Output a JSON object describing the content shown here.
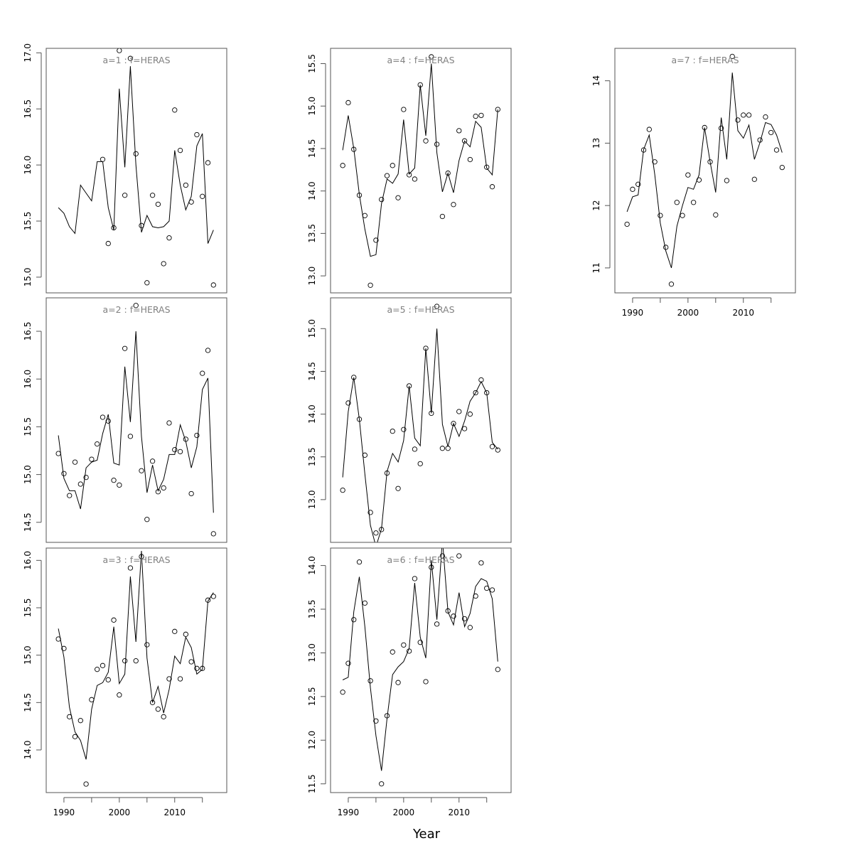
{
  "chart_data": {
    "type": "line",
    "xlabel": "Year",
    "xlim": [
      1986.8,
      2019.4
    ],
    "x_ticks": [
      "1990",
      "2000",
      "2010"
    ],
    "x": [
      1989,
      1990,
      1991,
      1992,
      1993,
      1994,
      1995,
      1996,
      1997,
      1998,
      1999,
      2000,
      2001,
      2002,
      2003,
      2004,
      2005,
      2006,
      2007,
      2008,
      2009,
      2010,
      2011,
      2012,
      2013,
      2014,
      2015,
      2016,
      2017
    ],
    "legend": "none",
    "grid": false,
    "panels": [
      {
        "title": "a=1  :  f=HERAS",
        "ylim": [
          14.86,
          17.04
        ],
        "y_ticks": [
          "15.0",
          "15.5",
          "16.0",
          "16.5",
          "17.0"
        ],
        "show_x_axis": false,
        "observed": [
          null,
          null,
          null,
          null,
          null,
          null,
          null,
          null,
          16.05,
          15.3,
          15.44,
          17.02,
          15.73,
          16.95,
          16.1,
          15.46,
          14.95,
          15.73,
          15.65,
          15.12,
          15.35,
          16.49,
          16.13,
          15.82,
          15.67,
          16.27,
          15.72,
          16.02,
          14.93
        ],
        "fitted": [
          15.62,
          15.57,
          15.45,
          15.39,
          15.82,
          15.75,
          15.68,
          16.03,
          16.03,
          15.62,
          15.42,
          16.68,
          15.98,
          16.88,
          16.0,
          15.4,
          15.55,
          15.45,
          15.44,
          15.45,
          15.5,
          16.13,
          15.82,
          15.6,
          15.72,
          16.17,
          16.28,
          15.3,
          15.42
        ]
      },
      {
        "title": "a=2  :  f=HERAS",
        "ylim": [
          14.29,
          16.85
        ],
        "y_ticks": [
          "14.5",
          "15.0",
          "15.5",
          "16.0",
          "16.5"
        ],
        "show_x_axis": false,
        "observed": [
          15.22,
          15.01,
          14.78,
          15.13,
          14.9,
          14.97,
          15.16,
          15.32,
          15.6,
          15.56,
          14.94,
          14.89,
          16.32,
          15.4,
          16.77,
          15.04,
          14.53,
          15.14,
          14.82,
          14.86,
          15.54,
          15.26,
          15.24,
          15.37,
          14.8,
          15.41,
          16.06,
          16.3,
          14.38
        ],
        "fitted": [
          15.41,
          14.96,
          14.83,
          14.83,
          14.64,
          15.07,
          15.13,
          15.15,
          15.43,
          15.63,
          15.12,
          15.1,
          16.13,
          15.55,
          16.5,
          15.4,
          14.81,
          15.1,
          14.83,
          14.95,
          15.21,
          15.21,
          15.52,
          15.35,
          15.07,
          15.29,
          15.89,
          16.01,
          14.6
        ]
      },
      {
        "title": "a=3  :  f=HERAS",
        "ylim": [
          13.55,
          16.13
        ],
        "y_ticks": [
          "14.0",
          "14.5",
          "15.0",
          "15.5",
          "16.0"
        ],
        "show_x_axis": true,
        "observed": [
          15.17,
          15.07,
          14.35,
          14.14,
          14.31,
          13.64,
          14.53,
          14.85,
          14.89,
          14.74,
          15.37,
          14.58,
          14.94,
          15.92,
          14.94,
          16.04,
          15.11,
          14.5,
          14.43,
          14.35,
          14.75,
          15.25,
          14.75,
          15.22,
          14.93,
          14.86,
          14.86,
          15.58,
          15.62
        ],
        "fitted": [
          15.28,
          14.98,
          14.45,
          14.19,
          14.1,
          13.9,
          14.43,
          14.68,
          14.71,
          14.82,
          15.3,
          14.7,
          14.8,
          15.83,
          15.14,
          16.1,
          14.97,
          14.5,
          14.67,
          14.39,
          14.64,
          14.99,
          14.91,
          15.19,
          15.08,
          14.8,
          14.85,
          15.57,
          15.66
        ]
      },
      {
        "title": "a=4  :  f=HERAS",
        "ylim": [
          12.8,
          15.68
        ],
        "y_ticks": [
          "13.0",
          "13.5",
          "14.0",
          "14.5",
          "15.0",
          "15.5"
        ],
        "show_x_axis": false,
        "observed": [
          14.3,
          15.04,
          14.49,
          13.95,
          13.71,
          12.89,
          13.42,
          13.9,
          14.18,
          14.3,
          13.92,
          14.96,
          14.19,
          14.14,
          15.25,
          14.59,
          15.58,
          14.55,
          13.7,
          14.21,
          13.84,
          14.71,
          14.59,
          14.37,
          14.88,
          14.89,
          14.28,
          14.05,
          14.96
        ],
        "fitted": [
          14.48,
          14.89,
          14.5,
          13.96,
          13.55,
          13.23,
          13.25,
          13.85,
          14.14,
          14.09,
          14.2,
          14.84,
          14.2,
          14.27,
          15.25,
          14.65,
          15.5,
          14.45,
          13.99,
          14.21,
          13.98,
          14.36,
          14.59,
          14.52,
          14.82,
          14.75,
          14.27,
          14.19,
          14.96
        ]
      },
      {
        "title": "a=5  :  f=HERAS",
        "ylim": [
          12.5,
          15.36
        ],
        "y_ticks": [
          "13.0",
          "13.5",
          "14.0",
          "14.5",
          "15.0"
        ],
        "show_x_axis": false,
        "observed": [
          13.11,
          14.13,
          14.43,
          13.94,
          13.52,
          12.85,
          12.61,
          12.65,
          13.31,
          13.8,
          13.13,
          13.82,
          14.33,
          13.59,
          13.42,
          14.77,
          14.01,
          15.26,
          13.6,
          13.6,
          13.89,
          14.03,
          13.83,
          14.0,
          14.25,
          14.4,
          14.25,
          13.62,
          13.58
        ],
        "fitted": [
          13.26,
          14.03,
          14.43,
          13.94,
          13.3,
          12.7,
          12.45,
          12.66,
          13.33,
          13.54,
          13.44,
          13.69,
          14.33,
          13.72,
          13.63,
          14.77,
          14.01,
          15.0,
          13.88,
          13.62,
          13.89,
          13.74,
          13.92,
          14.15,
          14.25,
          14.38,
          14.25,
          13.67,
          13.59
        ]
      },
      {
        "title": "a=6  :  f=HERAS",
        "ylim": [
          11.4,
          14.2
        ],
        "y_ticks": [
          "11.5",
          "12.0",
          "12.5",
          "13.0",
          "13.5",
          "14.0"
        ],
        "show_x_axis": true,
        "observed": [
          12.55,
          12.88,
          13.38,
          14.04,
          13.57,
          12.68,
          12.22,
          11.5,
          12.28,
          13.01,
          12.66,
          13.09,
          13.02,
          13.85,
          13.12,
          12.67,
          13.98,
          13.33,
          14.11,
          13.48,
          13.42,
          14.11,
          13.39,
          13.29,
          13.65,
          14.03,
          13.74,
          13.72,
          12.81
        ],
        "fitted": [
          12.69,
          12.72,
          13.47,
          13.87,
          13.3,
          12.6,
          12.05,
          11.65,
          12.25,
          12.75,
          12.84,
          12.9,
          13.05,
          13.8,
          13.18,
          12.94,
          14.06,
          13.38,
          14.3,
          13.47,
          13.32,
          13.69,
          13.3,
          13.45,
          13.76,
          13.85,
          13.82,
          13.62,
          12.9
        ]
      },
      {
        "title": "a=7  :  f=HERAS",
        "ylim": [
          10.6,
          14.52
        ],
        "y_ticks": [
          "11",
          "12",
          "13",
          "14"
        ],
        "show_x_axis": true,
        "observed": [
          11.7,
          12.26,
          12.34,
          12.89,
          13.22,
          12.7,
          11.84,
          11.33,
          10.74,
          12.05,
          11.84,
          12.49,
          12.05,
          12.41,
          13.25,
          12.7,
          11.85,
          13.24,
          12.4,
          14.39,
          13.37,
          13.45,
          13.45,
          12.42,
          13.05,
          13.42,
          13.17,
          12.89,
          12.61
        ],
        "fitted": [
          11.9,
          12.14,
          12.17,
          12.9,
          13.13,
          12.5,
          11.72,
          11.27,
          11.0,
          11.67,
          12.0,
          12.29,
          12.26,
          12.49,
          13.25,
          12.7,
          12.21,
          13.41,
          12.74,
          14.13,
          13.2,
          13.08,
          13.29,
          12.74,
          13.01,
          13.33,
          13.3,
          13.13,
          12.85
        ]
      }
    ]
  }
}
